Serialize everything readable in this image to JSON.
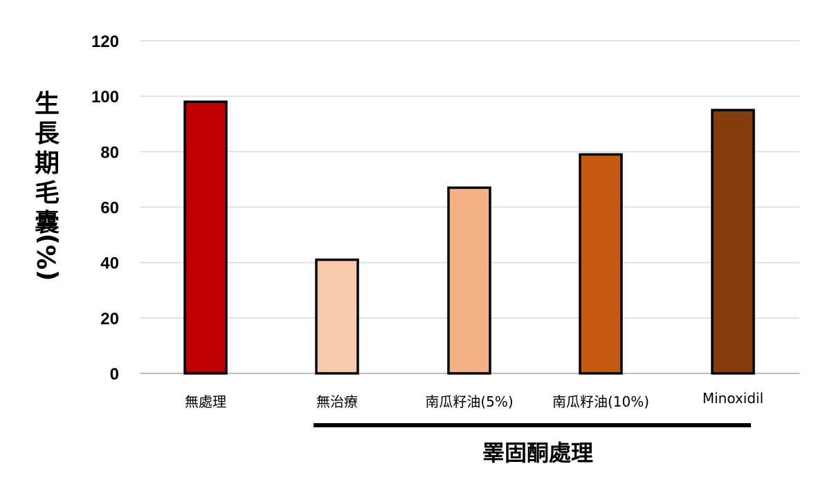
{
  "chart_data": {
    "type": "bar",
    "categories": [
      "無處理",
      "無治療",
      "南瓜籽油(5%)",
      "南瓜籽油(10%)",
      "Minoxidil"
    ],
    "values": [
      98,
      41,
      67,
      79,
      95
    ],
    "colors": [
      "#c00000",
      "#f8cbad",
      "#f4b183",
      "#c55a11",
      "#843c0c"
    ],
    "ylabel": "生長期毛囊(%)",
    "ylim": [
      0,
      120
    ],
    "yticks": [
      0,
      20,
      40,
      60,
      80,
      100,
      120
    ],
    "grid": true,
    "legend": "none",
    "group_label": "睪固酮處理"
  }
}
